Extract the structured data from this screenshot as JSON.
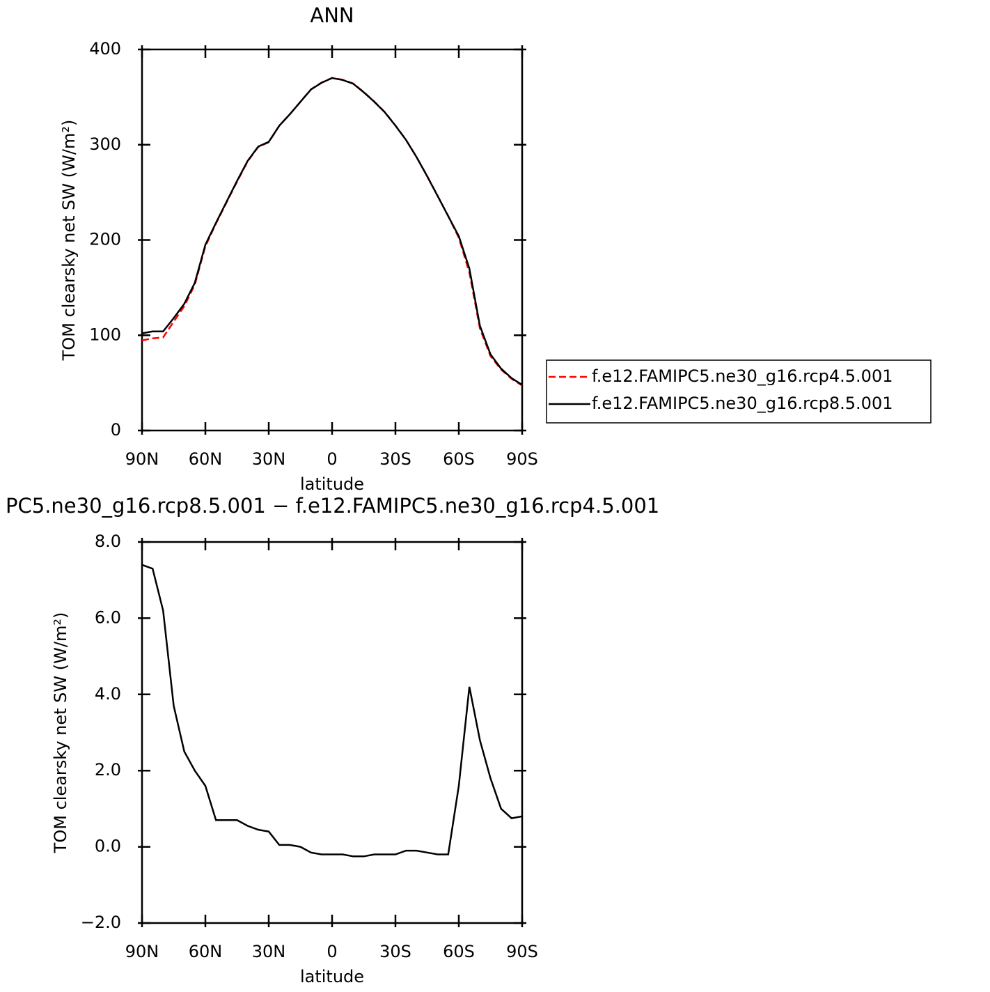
{
  "chart_data": [
    {
      "type": "line",
      "title": "ANN",
      "xlabel": "latitude",
      "ylabel": "TOM clearsky net SW (W/m²)",
      "x": [
        90,
        85,
        80,
        75,
        70,
        65,
        60,
        55,
        50,
        45,
        40,
        35,
        30,
        25,
        20,
        15,
        10,
        5,
        0,
        -5,
        -10,
        -15,
        -20,
        -25,
        -30,
        -35,
        -40,
        -45,
        -50,
        -55,
        -60,
        -65,
        -70,
        -75,
        -80,
        -85,
        -90
      ],
      "xlim": [
        90,
        -90
      ],
      "xticks": [
        {
          "value": 90,
          "label": "90N"
        },
        {
          "value": 60,
          "label": "60N"
        },
        {
          "value": 30,
          "label": "30N"
        },
        0,
        {
          "value": -30,
          "label": "30S"
        },
        {
          "value": -60,
          "label": "60S"
        },
        {
          "value": -90,
          "label": "90S"
        }
      ],
      "ylim": [
        0,
        400
      ],
      "yticks": [
        0,
        100,
        200,
        300,
        400
      ],
      "legend": "right",
      "series": [
        {
          "name": "f.e12.FAMIPC5.ne30_g16.rcp4.5.001",
          "color": "#ff0000",
          "dash": true,
          "values": [
            94.6,
            96.7,
            97.8,
            114.3,
            130.5,
            153,
            193.4,
            217.3,
            239.3,
            261.3,
            282.5,
            297.6,
            302.6,
            320,
            332,
            345,
            358.2,
            365.2,
            370.2,
            368.2,
            364.3,
            355.3,
            345.2,
            334.2,
            320.2,
            305.1,
            287.1,
            267.2,
            246.2,
            225.2,
            202.4,
            165.8,
            107.2,
            78.2,
            64,
            54.3,
            47.2
          ]
        },
        {
          "name": "f.e12.FAMIPC5.ne30_g16.rcp8.5.001",
          "color": "#000000",
          "dash": false,
          "values": [
            102,
            104,
            104,
            118,
            133,
            155,
            195,
            218,
            240,
            262,
            283,
            298,
            303,
            320,
            332,
            345,
            358,
            365,
            370,
            368,
            364,
            355,
            345,
            334,
            320,
            305,
            287,
            267,
            246,
            225,
            204,
            170,
            110,
            80,
            65,
            55,
            48
          ]
        }
      ]
    },
    {
      "type": "line",
      "title": "PC5.ne30_g16.rcp8.5.001 − f.e12.FAMIPC5.ne30_g16.rcp4.5.001",
      "xlabel": "latitude",
      "ylabel": "TOM clearsky net SW (W/m²)",
      "x": [
        90,
        85,
        80,
        75,
        70,
        65,
        60,
        55,
        50,
        45,
        40,
        35,
        30,
        25,
        20,
        15,
        10,
        5,
        0,
        -5,
        -10,
        -15,
        -20,
        -25,
        -30,
        -35,
        -40,
        -45,
        -50,
        -55,
        -60,
        -65,
        -70,
        -75,
        -80,
        -85,
        -90
      ],
      "xlim": [
        90,
        -90
      ],
      "xticks": [
        {
          "value": 90,
          "label": "90N"
        },
        {
          "value": 60,
          "label": "60N"
        },
        {
          "value": 30,
          "label": "30N"
        },
        0,
        {
          "value": -30,
          "label": "30S"
        },
        {
          "value": -60,
          "label": "60S"
        },
        {
          "value": -90,
          "label": "90S"
        }
      ],
      "ylim": [
        -2,
        8
      ],
      "yticks": [
        {
          "value": -2,
          "label": "−2.0"
        },
        {
          "value": 0,
          "label": "0.0"
        },
        {
          "value": 2,
          "label": "2.0"
        },
        {
          "value": 4,
          "label": "4.0"
        },
        {
          "value": 6,
          "label": "6.0"
        },
        {
          "value": 8,
          "label": "8.0"
        }
      ],
      "series": [
        {
          "color": "#000000",
          "dash": false,
          "values": [
            7.4,
            7.3,
            6.2,
            3.7,
            2.5,
            2.0,
            1.6,
            0.7,
            0.7,
            0.7,
            0.55,
            0.45,
            0.4,
            0.05,
            0.05,
            0.0,
            -0.15,
            -0.2,
            -0.2,
            -0.2,
            -0.25,
            -0.25,
            -0.2,
            -0.2,
            -0.2,
            -0.1,
            -0.1,
            -0.15,
            -0.2,
            -0.2,
            1.6,
            4.2,
            2.8,
            1.8,
            1.0,
            0.75,
            0.8
          ]
        }
      ]
    }
  ]
}
